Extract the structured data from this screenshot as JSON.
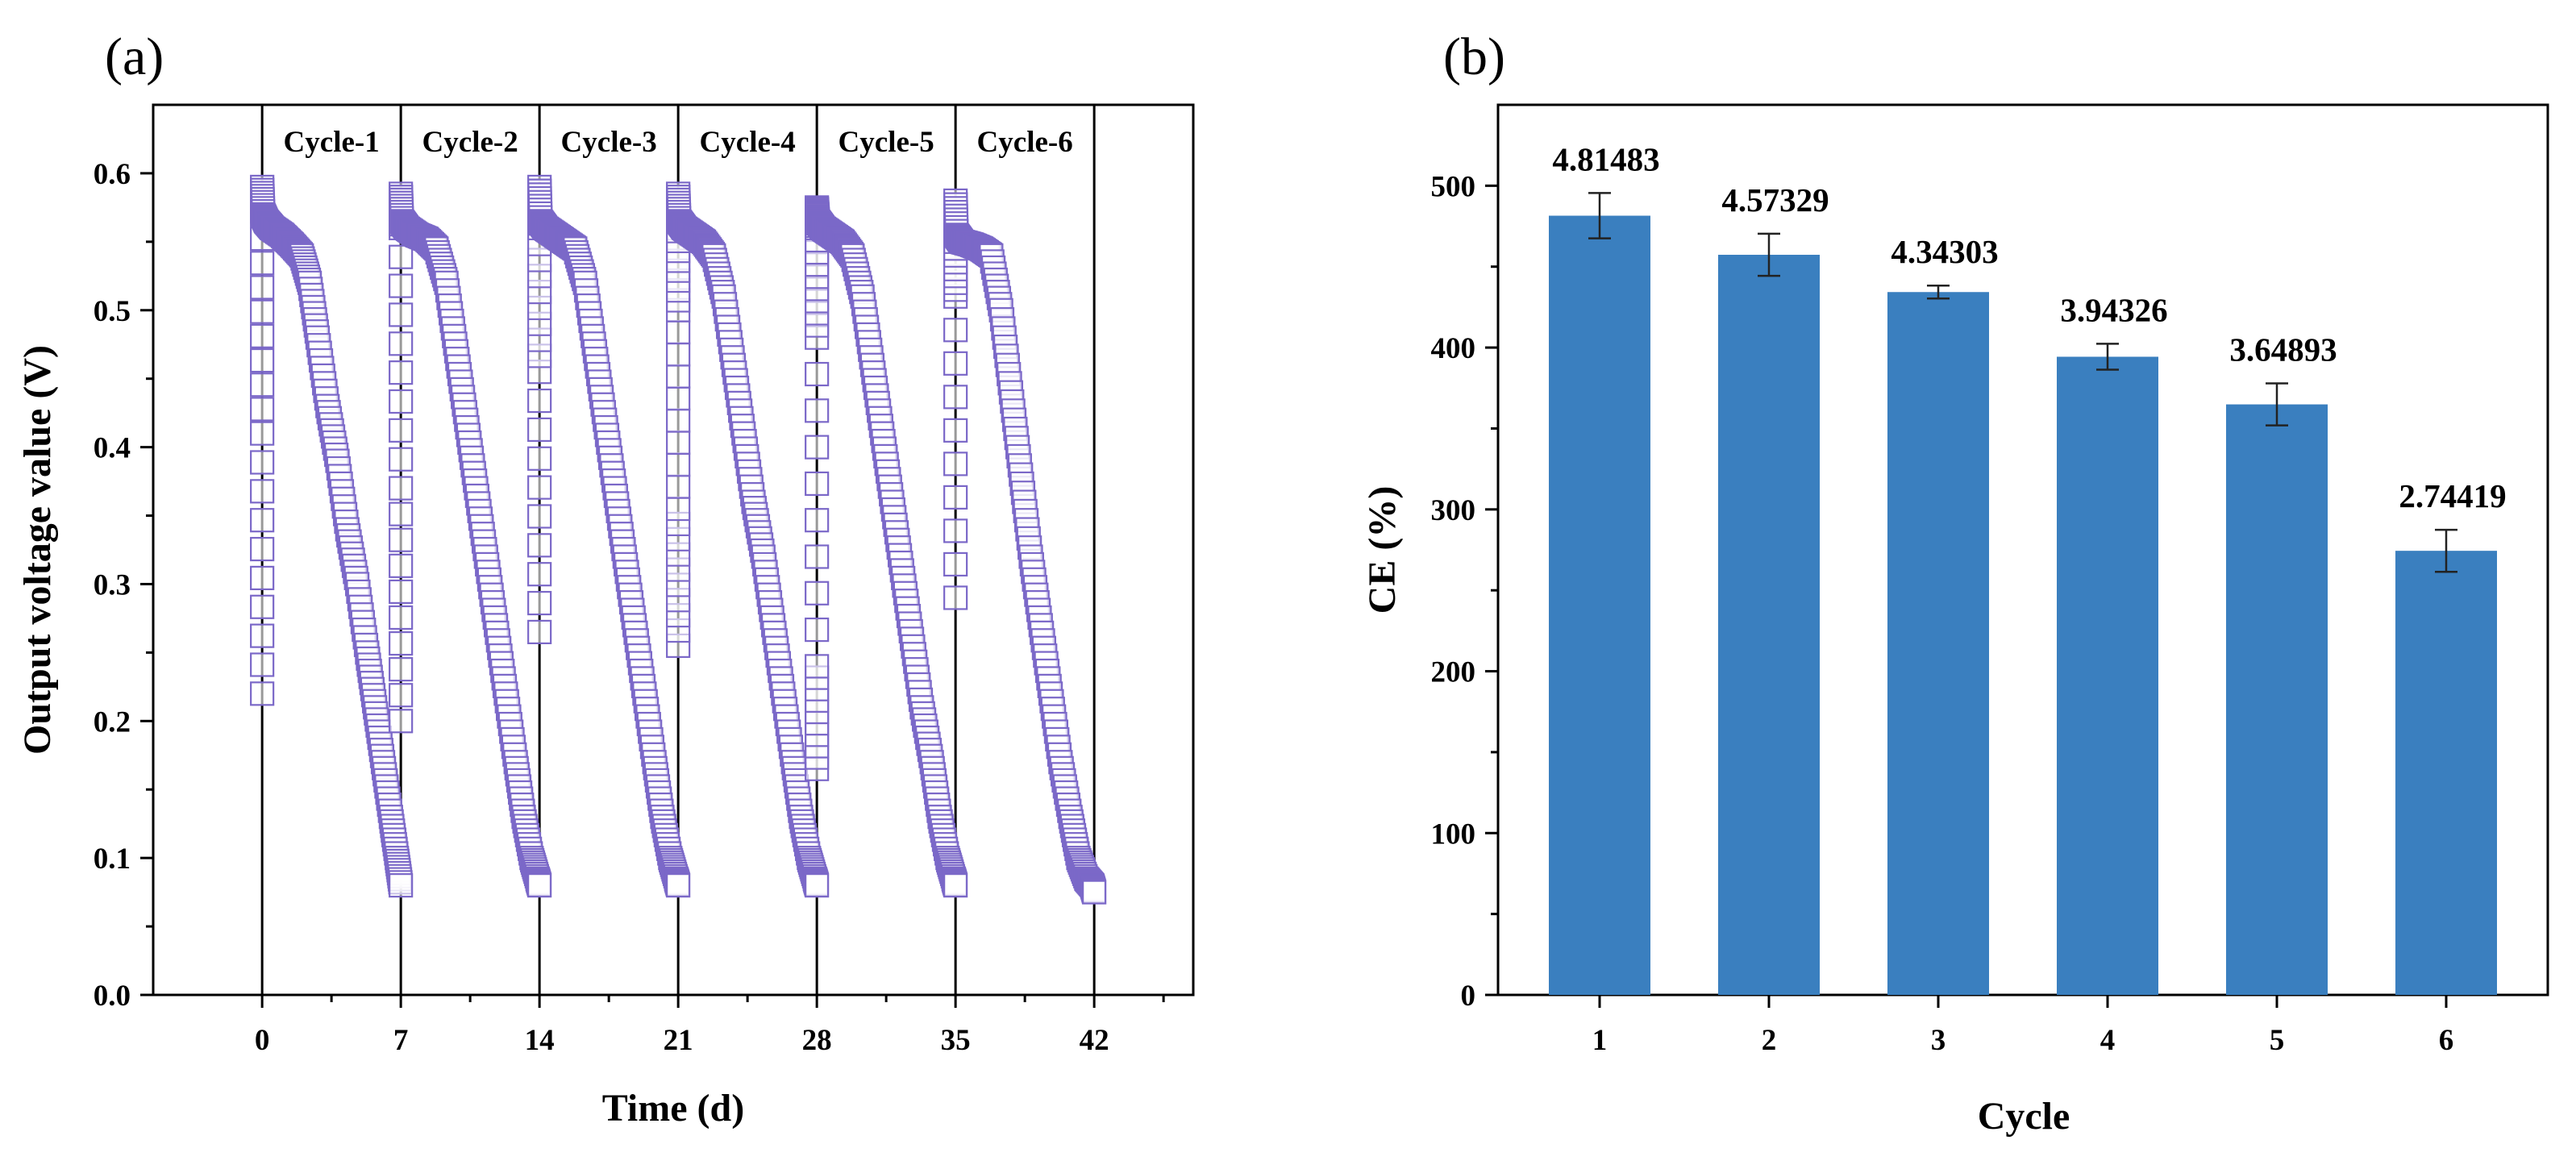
{
  "panel_a": {
    "label": "(a)",
    "chart_data": {
      "type": "scatter",
      "xlabel": "Time (d)",
      "ylabel": "Output voltage value (V)",
      "xlim": [
        -5.5,
        47
      ],
      "ylim": [
        0,
        0.65
      ],
      "xticks": [
        0,
        7,
        14,
        21,
        28,
        35,
        42
      ],
      "yticks": [
        0.0,
        0.1,
        0.2,
        0.3,
        0.4,
        0.5,
        0.6
      ],
      "xticklabels": [
        "0",
        "7",
        "14",
        "21",
        "28",
        "35",
        "42"
      ],
      "yticklabels": [
        "0.0",
        "0.1",
        "0.2",
        "0.3",
        "0.4",
        "0.5",
        "0.6"
      ],
      "cycle_boundaries": [
        0,
        7,
        14,
        21,
        28,
        35,
        42
      ],
      "cycle_labels": [
        "Cycle-1",
        "Cycle-2",
        "Cycle-3",
        "Cycle-4",
        "Cycle-5",
        "Cycle-6"
      ],
      "marker": "open-square",
      "color": "#7b68c8",
      "series": [
        {
          "x": [
            0.0,
            0.0,
            0.0,
            0.0,
            0.05,
            0.2,
            0.5,
            1.0,
            1.5,
            2.0,
            2.4,
            2.8,
            3.3,
            3.8,
            4.3,
            4.8,
            5.3,
            5.7,
            6.1,
            6.5,
            6.8,
            7.0
          ],
          "y": [
            0.22,
            0.41,
            0.57,
            0.59,
            0.57,
            0.565,
            0.56,
            0.555,
            0.548,
            0.54,
            0.52,
            0.48,
            0.43,
            0.39,
            0.34,
            0.3,
            0.25,
            0.21,
            0.17,
            0.13,
            0.1,
            0.08
          ]
        },
        {
          "x": [
            7.0,
            7.0,
            7.0,
            7.0,
            7.05,
            7.3,
            7.8,
            8.3,
            8.8,
            9.3,
            9.8,
            10.3,
            10.8,
            11.3,
            11.8,
            12.3,
            12.8,
            13.2,
            13.6,
            13.9,
            14.0
          ],
          "y": [
            0.2,
            0.37,
            0.56,
            0.585,
            0.565,
            0.56,
            0.555,
            0.552,
            0.545,
            0.52,
            0.47,
            0.42,
            0.37,
            0.32,
            0.27,
            0.22,
            0.17,
            0.13,
            0.1,
            0.085,
            0.08
          ]
        },
        {
          "x": [
            14.0,
            14.0,
            14.0,
            14.0,
            14.05,
            14.3,
            14.8,
            15.3,
            15.8,
            16.3,
            16.8,
            17.3,
            17.8,
            18.3,
            18.8,
            19.3,
            19.8,
            20.2,
            20.6,
            20.9,
            21.0
          ],
          "y": [
            0.265,
            0.455,
            0.56,
            0.59,
            0.565,
            0.56,
            0.555,
            0.55,
            0.545,
            0.52,
            0.47,
            0.42,
            0.37,
            0.32,
            0.27,
            0.22,
            0.17,
            0.13,
            0.1,
            0.085,
            0.08
          ]
        },
        {
          "x": [
            21.0,
            21.0,
            21.0,
            21.0,
            21.0,
            21.05,
            21.3,
            21.8,
            22.3,
            22.8,
            23.3,
            23.8,
            24.3,
            24.8,
            25.3,
            25.8,
            26.3,
            26.8,
            27.2,
            27.6,
            27.9,
            28.0
          ],
          "y": [
            0.255,
            0.355,
            0.5,
            0.565,
            0.585,
            0.565,
            0.56,
            0.555,
            0.55,
            0.54,
            0.51,
            0.46,
            0.41,
            0.36,
            0.32,
            0.27,
            0.22,
            0.17,
            0.13,
            0.1,
            0.085,
            0.08
          ]
        },
        {
          "x": [
            28.0,
            28.0,
            28.0,
            28.0,
            28.0,
            28.05,
            28.3,
            28.8,
            29.3,
            29.8,
            30.3,
            30.8,
            31.3,
            31.8,
            32.3,
            32.8,
            33.3,
            33.8,
            34.2,
            34.6,
            34.9,
            35.0
          ],
          "y": [
            0.165,
            0.24,
            0.48,
            0.56,
            0.575,
            0.565,
            0.56,
            0.555,
            0.55,
            0.54,
            0.51,
            0.46,
            0.41,
            0.36,
            0.31,
            0.26,
            0.21,
            0.17,
            0.13,
            0.1,
            0.085,
            0.08
          ]
        },
        {
          "x": [
            35.0,
            35.0,
            35.0,
            35.0,
            35.05,
            35.3,
            35.8,
            36.3,
            36.8,
            37.3,
            37.8,
            38.3,
            38.8,
            39.3,
            39.8,
            40.3,
            40.8,
            41.2,
            41.6,
            41.9,
            42.0
          ],
          "y": [
            0.29,
            0.51,
            0.555,
            0.58,
            0.555,
            0.55,
            0.548,
            0.545,
            0.54,
            0.5,
            0.44,
            0.38,
            0.32,
            0.27,
            0.22,
            0.17,
            0.13,
            0.1,
            0.085,
            0.08,
            0.075
          ]
        }
      ]
    }
  },
  "panel_b": {
    "label": "(b)",
    "chart_data": {
      "type": "bar",
      "xlabel": "Cycle",
      "ylabel": "CE (%)",
      "categories": [
        "1",
        "2",
        "3",
        "4",
        "5",
        "6"
      ],
      "values": [
        481.483,
        457.329,
        434.303,
        394.326,
        364.893,
        274.419
      ],
      "errors": [
        14,
        13,
        4,
        8,
        13,
        13
      ],
      "data_labels": [
        "4.81483",
        "4.57329",
        "4.34303",
        "3.94326",
        "3.64893",
        "2.74419"
      ],
      "ylim": [
        0,
        550
      ],
      "yticks": [
        0,
        100,
        200,
        300,
        400,
        500
      ],
      "yticklabels": [
        "0",
        "100",
        "200",
        "300",
        "400",
        "500"
      ],
      "color": "#3a7fbf"
    }
  }
}
